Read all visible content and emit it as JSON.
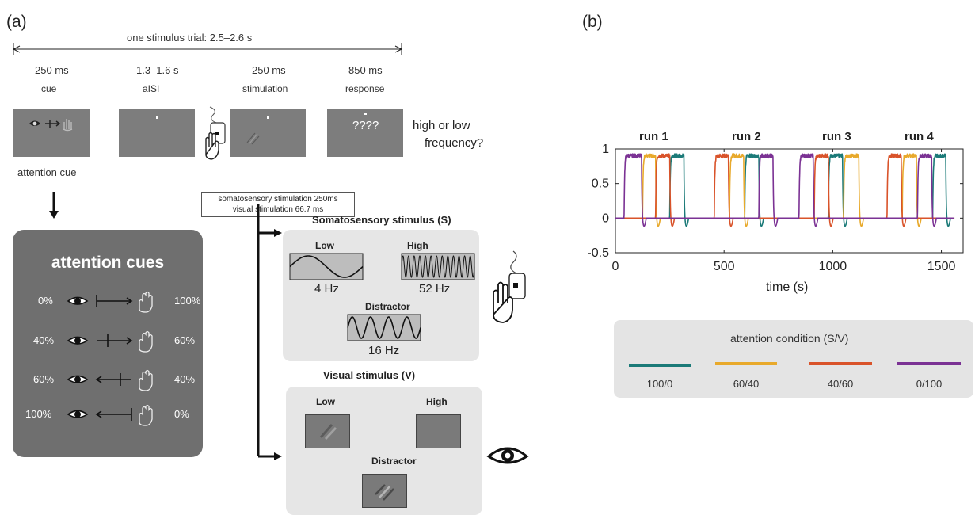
{
  "panel_a": {
    "label": "(a)",
    "trial_span": "one stimulus trial: 2.5–2.6 s",
    "phases": [
      {
        "duration": "250 ms",
        "name": "cue"
      },
      {
        "duration": "1.3–1.6 s",
        "name": "aISI"
      },
      {
        "duration": "250 ms",
        "name": "stimulation"
      },
      {
        "duration": "850 ms",
        "name": "response"
      }
    ],
    "response_text": "????",
    "question_line1": "high or low",
    "question_line2": "frequency?",
    "attention_cue_caption": "attention cue",
    "stim_note_line1": "somatosensory stimulation 250ms",
    "stim_note_line2": "visual stimulation 66.7 ms",
    "cues": {
      "title": "attention cues",
      "rows": [
        {
          "left": "0%",
          "right": "100%"
        },
        {
          "left": "40%",
          "right": "60%"
        },
        {
          "left": "60%",
          "right": "40%"
        },
        {
          "left": "100%",
          "right": "0%"
        }
      ]
    },
    "somato": {
      "title": "Somatosensory stimulus (S)",
      "low_label": "Low",
      "low_freq": "4 Hz",
      "high_label": "High",
      "high_freq": "52 Hz",
      "distractor_label": "Distractor",
      "distractor_freq": "16 Hz"
    },
    "visual": {
      "title": "Visual stimulus  (V)",
      "low_label": "Low",
      "high_label": "High",
      "distractor_label": "Distractor"
    }
  },
  "panel_b": {
    "label": "(b)",
    "runs": [
      "run 1",
      "run 2",
      "run 3",
      "run 4"
    ],
    "chart_data": {
      "type": "line",
      "xlabel": "time (s)",
      "ylabel": "",
      "xlim": [
        0,
        1600
      ],
      "ylim": [
        -0.5,
        1
      ],
      "xticks": [
        0,
        500,
        1000,
        1500
      ],
      "yticks": [
        -0.5,
        0,
        0.5,
        1
      ],
      "ytick_labels": [
        "-0.5",
        "0",
        "0.5",
        "1"
      ],
      "series": [
        {
          "name": "100/0",
          "color": "#1b7a78",
          "blocks": [
            [
              250,
              315
            ],
            [
              595,
              660
            ],
            [
              980,
              1045
            ],
            [
              1460,
              1520
            ]
          ]
        },
        {
          "name": "60/40",
          "color": "#e8a92b",
          "blocks": [
            [
              125,
              185
            ],
            [
              525,
              590
            ],
            [
              1050,
              1120
            ],
            [
              1320,
              1385
            ]
          ]
        },
        {
          "name": "40/60",
          "color": "#d9532a",
          "blocks": [
            [
              185,
              250
            ],
            [
              455,
              520
            ],
            [
              915,
              980
            ],
            [
              1250,
              1315
            ]
          ]
        },
        {
          "name": "0/100",
          "color": "#7b3294",
          "blocks": [
            [
              40,
              120
            ],
            [
              660,
              725
            ],
            [
              845,
              910
            ],
            [
              1390,
              1455
            ]
          ]
        }
      ]
    },
    "legend": {
      "title": "attention  condition (S/V)",
      "items": [
        {
          "label": "100/0",
          "color": "#1b7a78"
        },
        {
          "label": "60/40",
          "color": "#e8a92b"
        },
        {
          "label": "40/60",
          "color": "#d9532a"
        },
        {
          "label": "0/100",
          "color": "#7b3294"
        }
      ]
    }
  }
}
